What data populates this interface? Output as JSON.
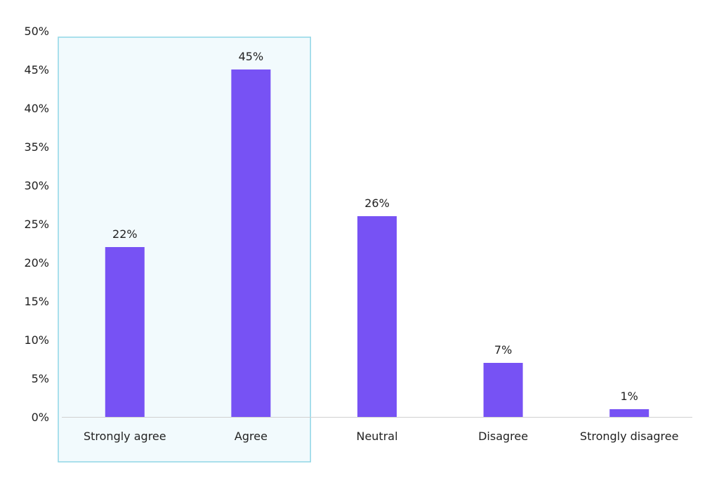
{
  "chart_data": {
    "type": "bar",
    "title": "",
    "xlabel": "",
    "ylabel": "",
    "ylim": [
      0,
      50
    ],
    "yticks": [
      0,
      5,
      10,
      15,
      20,
      25,
      30,
      35,
      40,
      45,
      50
    ],
    "ytick_labels": [
      "0%",
      "5%",
      "10%",
      "15%",
      "20%",
      "25%",
      "30%",
      "35%",
      "40%",
      "45%",
      "50%"
    ],
    "categories": [
      "Strongly agree",
      "Agree",
      "Neutral",
      "Disagree",
      "Strongly disagree"
    ],
    "values": [
      22,
      45,
      26,
      7,
      1
    ],
    "data_labels": [
      "22%",
      "45%",
      "26%",
      "7%",
      "1%"
    ],
    "highlighted_categories": [
      "Strongly agree",
      "Agree"
    ],
    "grid": false,
    "legend": "none",
    "colors": {
      "bar": "#7752f4",
      "highlight_fill": "#f2fafd",
      "highlight_border": "#8fd6e6",
      "axis": "#d0d0d0",
      "text": "#222222"
    }
  }
}
